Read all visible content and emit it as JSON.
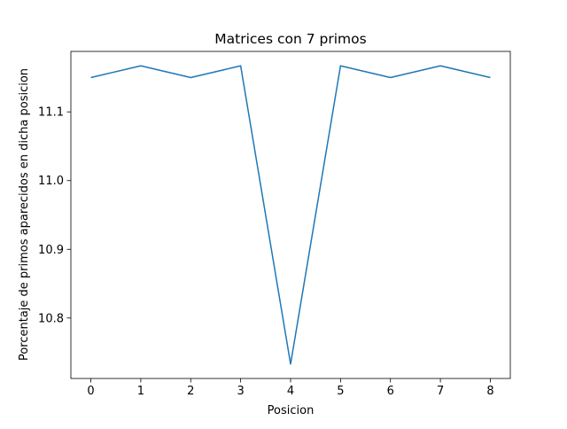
{
  "chart_data": {
    "type": "line",
    "title": "Matrices con 7 primos",
    "xlabel": "Posicion",
    "ylabel": "Porcentaje de primos aparecidos en dicha posicion",
    "x": [
      0,
      1,
      2,
      3,
      4,
      5,
      6,
      7,
      8
    ],
    "series": [
      {
        "values": [
          11.15,
          11.167,
          11.15,
          11.167,
          10.733,
          11.167,
          11.15,
          11.167,
          11.15
        ],
        "color": "#1f77b4"
      }
    ],
    "xlim": [
      -0.4,
      8.4
    ],
    "ylim": [
      10.712,
      11.188
    ],
    "xticks": [
      0,
      1,
      2,
      3,
      4,
      5,
      6,
      7,
      8
    ],
    "xtick_labels": [
      "0",
      "1",
      "2",
      "3",
      "4",
      "5",
      "6",
      "7",
      "8"
    ],
    "yticks": [
      10.8,
      10.9,
      11.0,
      11.1
    ],
    "ytick_labels": [
      "10.8",
      "10.9",
      "11.0",
      "11.1"
    ],
    "grid": false,
    "legend": "none"
  }
}
